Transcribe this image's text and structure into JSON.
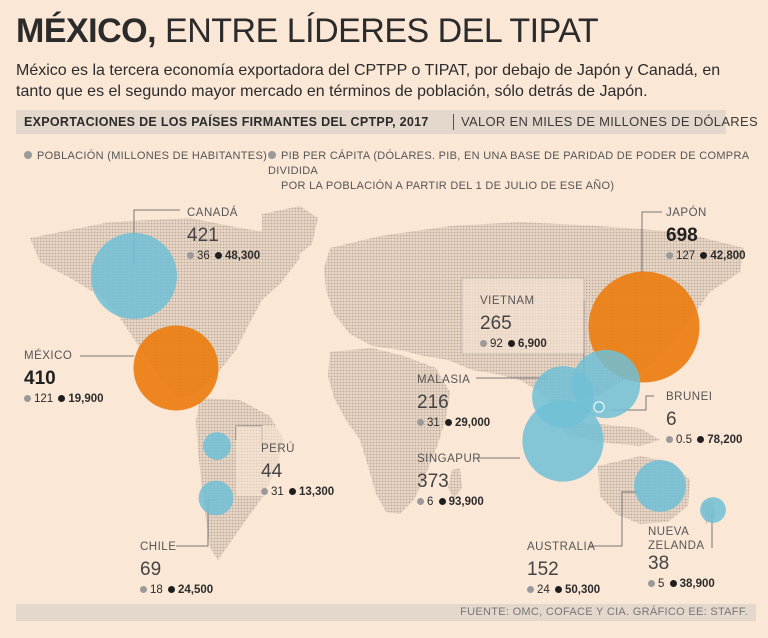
{
  "header": {
    "title_bold": "MÉXICO,",
    "title_rest": "ENTRE LÍDERES DEL TIPAT",
    "subtitle": "México es la tercera economía exportadora del CPTPP o TIPAT, por debajo de Japón y Canadá, en tanto que es el segundo mayor mercado en términos de población, sólo detrás de Japón."
  },
  "band": {
    "left": "EXPORTACIONES DE LOS PAÍSES FIRMANTES DEL CPTPP, 2017",
    "right": "VALOR EN MILES DE MILLONES DE DÓLARES"
  },
  "legend": {
    "population": "POBLACIÓN (MILLONES DE HABITANTES)",
    "gdp_line1": "PIB PER CÁPITA (DÓLARES. PIB, EN UNA BASE DE PARIDAD DE PODER DE COMPRA DIVIDIDA",
    "gdp_line2": "POR LA POBLACIÓN A PARTIR DEL 1 DE JULIO DE ESE AÑO)"
  },
  "colors": {
    "blue": "#6fbfd6",
    "orange": "#ec7e11",
    "bg": "#fbe7d6",
    "land": "#cdbfb2"
  },
  "chart_data": {
    "type": "bubble-map",
    "title": "EXPORTACIONES DE LOS PAÍSES FIRMANTES DEL CPTPP, 2017",
    "unit": "VALOR EN MILES DE MILLONES DE DÓLARES",
    "countries": [
      {
        "name": "CANADÁ",
        "exports": "421",
        "population": "36",
        "gdp": "48,300",
        "highlight": false
      },
      {
        "name": "MÉXICO",
        "exports": "410",
        "population": "121",
        "gdp": "19,900",
        "highlight": true
      },
      {
        "name": "PERÚ",
        "exports": "44",
        "population": "31",
        "gdp": "13,300",
        "highlight": false
      },
      {
        "name": "CHILE",
        "exports": "69",
        "population": "18",
        "gdp": "24,500",
        "highlight": false
      },
      {
        "name": "JAPÓN",
        "exports": "698",
        "population": "127",
        "gdp": "42,800",
        "highlight": true
      },
      {
        "name": "VIETNAM",
        "exports": "265",
        "population": "92",
        "gdp": "6,900",
        "highlight": false
      },
      {
        "name": "MALASIA",
        "exports": "216",
        "population": "31",
        "gdp": "29,000",
        "highlight": false
      },
      {
        "name": "BRUNEI",
        "exports": "6",
        "population": "0.5",
        "gdp": "78,200",
        "highlight": false
      },
      {
        "name": "SINGAPUR",
        "exports": "373",
        "population": "6",
        "gdp": "93,900",
        "highlight": false
      },
      {
        "name": "AUSTRALIA",
        "exports": "152",
        "population": "24",
        "gdp": "50,300",
        "highlight": false
      },
      {
        "name": "NUEVA ZELANDA",
        "exports": "38",
        "population": "5",
        "gdp": "38,900",
        "highlight": false
      }
    ]
  },
  "footer": "FUENTE: OMC, COFACE Y CIA. GRÁFICO EE: STAFF."
}
